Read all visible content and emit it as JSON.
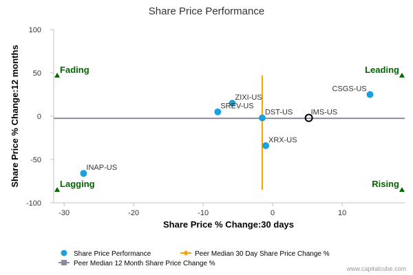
{
  "chart_data": {
    "type": "scatter",
    "title": "Share Price Performance",
    "xlabel": "Share Price % Change:30 days",
    "ylabel": "Share Price % Change:12 months",
    "xlim": [
      -31.5,
      19
    ],
    "ylim": [
      -100,
      100
    ],
    "x_ticks": [
      -30,
      -20,
      -10,
      0,
      10
    ],
    "y_ticks": [
      100,
      50,
      0,
      -50,
      -100
    ],
    "grid": false,
    "legend_position": "bottom-left",
    "colors": {
      "points": "#1ba1e2",
      "peer_30d": "#f5a300",
      "peer_12m": "#8c8c9c",
      "quadrant": "#006600",
      "axis_text": "#333333"
    },
    "points": [
      {
        "label": "CSGS-US",
        "x": 14,
        "y": 25
      },
      {
        "label": "ZIXI-US",
        "x": -5.8,
        "y": 15
      },
      {
        "label": "SREV-US",
        "x": -7.9,
        "y": 5
      },
      {
        "label": "DST-US",
        "x": -1.5,
        "y": -2
      },
      {
        "label": "XRX-US",
        "x": -1,
        "y": -34
      },
      {
        "label": "INAP-US",
        "x": -27.2,
        "y": -66
      }
    ],
    "highlight": {
      "label": "IMS-US",
      "x": 5.2,
      "y": -2
    },
    "peer_median_30d": {
      "x": -1.5,
      "y_range": [
        47,
        -85
      ]
    },
    "peer_median_12m": {
      "y": -2.5,
      "x_range": [
        -31.5,
        19
      ]
    },
    "quadrants": [
      {
        "label": "Fading",
        "corner": "top-left",
        "x": -31,
        "y": 47
      },
      {
        "label": "Leading",
        "corner": "top-right",
        "x": 18.6,
        "y": 47
      },
      {
        "label": "Lagging",
        "corner": "bottom-left",
        "x": -31,
        "y": -85
      },
      {
        "label": "Rising",
        "corner": "bottom-right",
        "x": 18.6,
        "y": -85
      }
    ],
    "legend": [
      "Share Price Performance",
      "Peer Median 30 Day Share Price Change %",
      "Peer Median 12 Month Share Price Change %"
    ]
  },
  "watermark": "www.capitalcube.com"
}
